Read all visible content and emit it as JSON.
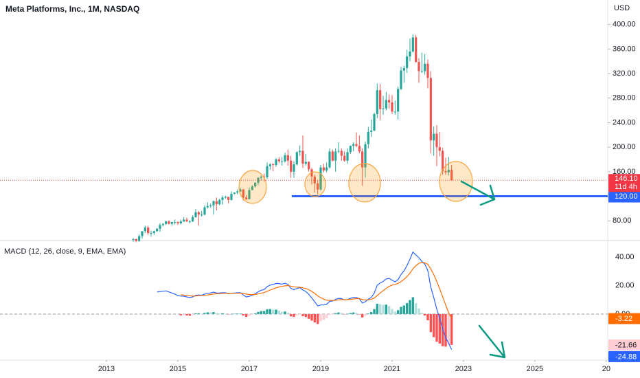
{
  "chart_data": [
    {
      "type": "candlestick",
      "title": "Meta Platforms, Inc., 1M, NASDAQ",
      "currency": "USD",
      "up_color": "#26a69a",
      "down_color": "#ef5350",
      "candles": [
        [
          50,
          52,
          46,
          50
        ],
        [
          50,
          51,
          45,
          47
        ],
        [
          47,
          58,
          46,
          55
        ],
        [
          55,
          63,
          51,
          63
        ],
        [
          63,
          72,
          60,
          69
        ],
        [
          69,
          72,
          57,
          60
        ],
        [
          60,
          64,
          54,
          60
        ],
        [
          60,
          64,
          57,
          63
        ],
        [
          63,
          68,
          62,
          67
        ],
        [
          67,
          76,
          62,
          73
        ],
        [
          73,
          76,
          71,
          75
        ],
        [
          75,
          80,
          73,
          79
        ],
        [
          79,
          81,
          74,
          75
        ],
        [
          75,
          78,
          72,
          78
        ],
        [
          78,
          82,
          74,
          78
        ],
        [
          78,
          79,
          73,
          76
        ],
        [
          76,
          82,
          74,
          79
        ],
        [
          79,
          86,
          78,
          82
        ],
        [
          82,
          85,
          78,
          79
        ],
        [
          79,
          81,
          76,
          79
        ],
        [
          79,
          89,
          78,
          86
        ],
        [
          86,
          99,
          85,
          94
        ],
        [
          94,
          96,
          72,
          90
        ],
        [
          90,
          96,
          87,
          90
        ],
        [
          90,
          105,
          89,
          102
        ],
        [
          102,
          110,
          100,
          104
        ],
        [
          104,
          108,
          101,
          105
        ],
        [
          105,
          113,
          90,
          112
        ],
        [
          112,
          118,
          97,
          107
        ],
        [
          107,
          116,
          105,
          114
        ],
        [
          114,
          121,
          106,
          118
        ],
        [
          118,
          121,
          116,
          119
        ],
        [
          119,
          119,
          108,
          114
        ],
        [
          114,
          128,
          113,
          124
        ],
        [
          124,
          126,
          123,
          126
        ],
        [
          126,
          131,
          123,
          128
        ],
        [
          128,
          134,
          127,
          131
        ],
        [
          131,
          132,
          113,
          118
        ],
        [
          118,
          122,
          114,
          115
        ],
        [
          115,
          134,
          115,
          130
        ],
        [
          130,
          138,
          130,
          136
        ],
        [
          136,
          143,
          134,
          142
        ],
        [
          142,
          151,
          138,
          150
        ],
        [
          150,
          154,
          146,
          152
        ],
        [
          152,
          157,
          144,
          151
        ],
        [
          151,
          175,
          148,
          169
        ],
        [
          169,
          174,
          163,
          172
        ],
        [
          172,
          174,
          161,
          171
        ],
        [
          171,
          182,
          168,
          180
        ],
        [
          180,
          184,
          174,
          177
        ],
        [
          177,
          184,
          170,
          177
        ],
        [
          177,
          191,
          175,
          187
        ],
        [
          187,
          196,
          170,
          178
        ],
        [
          178,
          186,
          150,
          160
        ],
        [
          160,
          177,
          150,
          172
        ],
        [
          172,
          193,
          170,
          192
        ],
        [
          192,
          203,
          186,
          194
        ],
        [
          194,
          219,
          166,
          173
        ],
        [
          173,
          189,
          170,
          176
        ],
        [
          176,
          177,
          160,
          164
        ],
        [
          164,
          166,
          139,
          152
        ],
        [
          152,
          155,
          126,
          141
        ],
        [
          141,
          147,
          123,
          131
        ],
        [
          131,
          171,
          129,
          167
        ],
        [
          167,
          173,
          159,
          162
        ],
        [
          162,
          175,
          159,
          167
        ],
        [
          167,
          198,
          165,
          193
        ],
        [
          193,
          196,
          177,
          178
        ],
        [
          178,
          198,
          160,
          193
        ],
        [
          193,
          208,
          190,
          194
        ],
        [
          194,
          198,
          178,
          186
        ],
        [
          186,
          193,
          176,
          178
        ],
        [
          178,
          198,
          173,
          192
        ],
        [
          192,
          203,
          189,
          202
        ],
        [
          202,
          208,
          193,
          205
        ],
        [
          205,
          224,
          200,
          202
        ],
        [
          202,
          219,
          190,
          193
        ],
        [
          193,
          198,
          137,
          167
        ],
        [
          167,
          209,
          150,
          205
        ],
        [
          205,
          233,
          198,
          225
        ],
        [
          225,
          245,
          217,
          227
        ],
        [
          227,
          256,
          226,
          254
        ],
        [
          254,
          304,
          247,
          293
        ],
        [
          293,
          303,
          244,
          262
        ],
        [
          262,
          284,
          253,
          263
        ],
        [
          263,
          290,
          260,
          277
        ],
        [
          277,
          286,
          263,
          273
        ],
        [
          273,
          285,
          254,
          258
        ],
        [
          258,
          276,
          253,
          258
        ],
        [
          258,
          299,
          245,
          295
        ],
        [
          295,
          331,
          293,
          325
        ],
        [
          325,
          333,
          305,
          329
        ],
        [
          329,
          359,
          321,
          348
        ],
        [
          348,
          377,
          340,
          356
        ],
        [
          356,
          384,
          354,
          379
        ],
        [
          379,
          383,
          338,
          339
        ],
        [
          339,
          345,
          305,
          324
        ],
        [
          324,
          354,
          321,
          324
        ],
        [
          324,
          352,
          318,
          336
        ],
        [
          336,
          343,
          296,
          313
        ],
        [
          313,
          324,
          190,
          211
        ],
        [
          211,
          234,
          186,
          222
        ],
        [
          222,
          236,
          169,
          200
        ],
        [
          200,
          225,
          185,
          194
        ],
        [
          194,
          199,
          155,
          161
        ],
        [
          161,
          183,
          155,
          159
        ],
        [
          159,
          184,
          154,
          163
        ],
        [
          163,
          171,
          145,
          146.1
        ]
      ],
      "ylim": [
        50,
        440
      ],
      "yticks": [
        {
          "value": 80,
          "label": "80.00"
        },
        {
          "value": 160,
          "label": "160.00"
        },
        {
          "value": 200,
          "label": "200.00"
        },
        {
          "value": 240,
          "label": "240.00"
        },
        {
          "value": 280,
          "label": "280.00"
        },
        {
          "value": 320,
          "label": "320.00"
        },
        {
          "value": 360,
          "label": "360.00"
        },
        {
          "value": 400,
          "label": "400.00"
        }
      ],
      "last_price": {
        "value": 146.1,
        "label": "146.10",
        "countdown": "11d 4h",
        "color": "#f23645"
      },
      "hline": {
        "value": 120,
        "label": "120.00",
        "color": "#2962ff"
      }
    },
    {
      "type": "macd",
      "title": "MACD (12, 26, close, 9, EMA, EMA)",
      "series": [
        {
          "color": "#2962ff",
          "values": [
            null,
            null,
            null,
            null,
            null,
            null,
            null,
            null,
            15.5,
            15.8,
            16.0,
            16.2,
            15.5,
            14.8,
            14.0,
            13.0,
            12.6,
            12.5,
            12.0,
            11.6,
            12.0,
            13.2,
            13.4,
            13.2,
            14.0,
            14.6,
            14.8,
            15.4,
            14.8,
            14.8,
            15.0,
            14.9,
            14.2,
            14.6,
            14.8,
            14.9,
            15.0,
            13.4,
            12.0,
            12.4,
            13.2,
            14.2,
            15.6,
            16.7,
            17.2,
            19.2,
            20.3,
            20.7,
            21.5,
            21.4,
            21.0,
            21.6,
            20.8,
            18.0,
            17.1,
            17.9,
            18.5,
            16.9,
            15.8,
            13.8,
            11.3,
            8.6,
            5.7,
            6.4,
            6.4,
            6.8,
            8.9,
            9.1,
            10.3,
            11.0,
            10.8,
            9.9,
            10.2,
            11.0,
            11.7,
            11.6,
            10.7,
            7.8,
            8.6,
            10.4,
            11.7,
            14.7,
            20.2,
            21.8,
            22.9,
            24.6,
            25.0,
            23.8,
            22.6,
            24.2,
            27.8,
            30.3,
            34.0,
            38.5,
            43.5,
            41.5,
            39.5,
            37.0,
            35.0,
            30.5,
            19.0,
            11.5,
            3.5,
            -3.0,
            -10.5,
            -16.5,
            -20.5,
            -24.88
          ]
        },
        {
          "color": "#ff6d00",
          "values": [
            null,
            null,
            null,
            null,
            null,
            null,
            null,
            null,
            null,
            null,
            null,
            null,
            null,
            null,
            null,
            null,
            13.5,
            13.3,
            13.0,
            12.8,
            12.6,
            12.7,
            12.9,
            13.0,
            13.2,
            13.4,
            13.7,
            14.0,
            14.2,
            14.3,
            14.5,
            14.6,
            14.5,
            14.5,
            14.6,
            14.6,
            14.7,
            14.4,
            14.0,
            13.7,
            13.6,
            13.7,
            14.1,
            14.6,
            15.1,
            15.9,
            16.8,
            17.6,
            18.4,
            19.0,
            19.4,
            19.8,
            20.0,
            19.6,
            19.1,
            18.9,
            18.8,
            18.4,
            17.9,
            17.1,
            15.9,
            14.5,
            12.7,
            11.5,
            10.5,
            9.7,
            9.6,
            9.5,
            9.7,
            9.9,
            10.1,
            10.1,
            10.1,
            10.3,
            10.6,
            10.8,
            10.8,
            10.2,
            9.9,
            10.0,
            10.3,
            11.2,
            13.0,
            14.8,
            16.4,
            18.0,
            19.4,
            20.3,
            20.8,
            21.5,
            22.8,
            24.3,
            26.3,
            28.7,
            31.7,
            33.9,
            35.6,
            36.2,
            36.0,
            34.9,
            31.7,
            27.7,
            22.9,
            17.7,
            12.1,
            6.4,
            1.0,
            -3.22
          ]
        },
        {
          "colors": [
            "#26a69a",
            "#b2dfdb",
            "#ff5252",
            "#ffcdd2"
          ],
          "values": [
            null,
            null,
            null,
            null,
            null,
            null,
            null,
            null,
            null,
            null,
            null,
            null,
            null,
            null,
            null,
            null,
            -0.9,
            -0.8,
            -1.0,
            -1.2,
            -0.6,
            0.5,
            0.5,
            0.2,
            0.8,
            1.2,
            1.1,
            1.4,
            0.6,
            0.5,
            0.5,
            0.3,
            -0.3,
            0.1,
            0.2,
            0.3,
            0.3,
            -1.0,
            -2.0,
            -1.3,
            -0.4,
            0.5,
            1.5,
            2.1,
            2.1,
            3.3,
            3.5,
            3.1,
            3.1,
            2.4,
            1.6,
            1.8,
            0.8,
            -1.6,
            -2.0,
            -1.0,
            -0.3,
            -1.5,
            -2.1,
            -3.3,
            -4.6,
            -5.9,
            -7.0,
            -5.1,
            -4.1,
            -2.9,
            -0.7,
            -0.4,
            0.6,
            1.1,
            0.7,
            -0.2,
            0.1,
            0.7,
            1.1,
            0.8,
            -0.1,
            -2.4,
            -1.3,
            0.4,
            1.4,
            3.5,
            7.2,
            7.0,
            6.5,
            6.6,
            5.6,
            3.5,
            1.8,
            2.7,
            5.0,
            6.0,
            7.7,
            9.8,
            11.8,
            7.6,
            3.9,
            0.8,
            -1.0,
            -4.4,
            -12.7,
            -16.2,
            -19.4,
            -20.7,
            -22.6,
            -22.9,
            -21.5,
            -21.66
          ]
        }
      ],
      "ylim": [
        -30.4,
        50.6
      ],
      "yticks": [
        {
          "value": 0,
          "label": "0.00"
        },
        {
          "value": 20,
          "label": "20.00"
        },
        {
          "value": 40,
          "label": "40.00"
        }
      ],
      "xlim": [
        2010.02,
        2027.04
      ],
      "xticks": [
        2013,
        2015,
        2017,
        2019,
        2021,
        2023,
        2025,
        {
          "value": 2027,
          "label": "20"
        }
      ]
    }
  ]
}
